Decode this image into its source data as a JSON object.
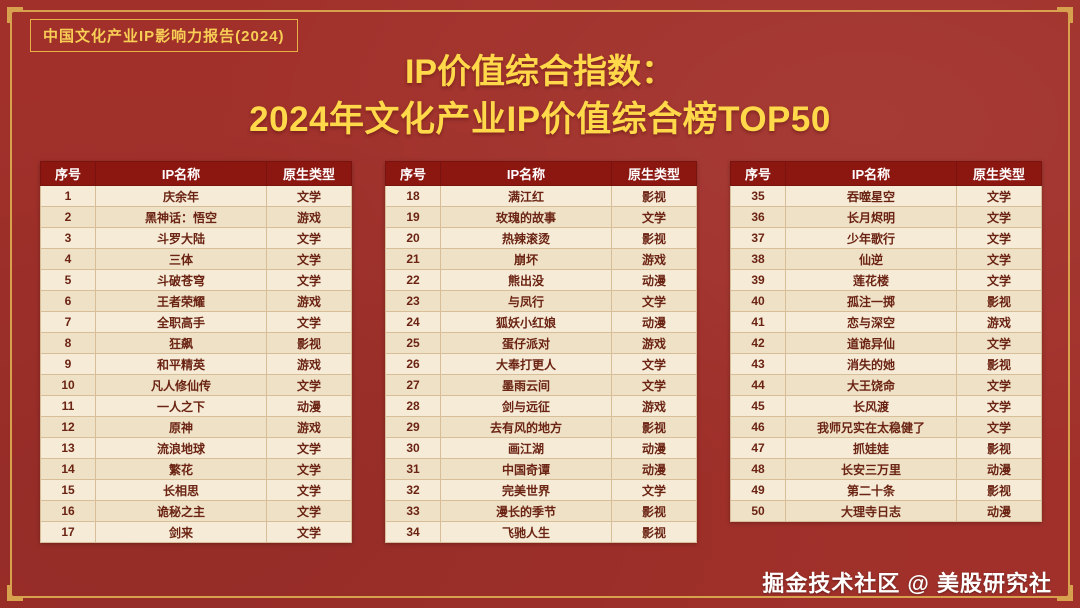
{
  "page": {
    "report_label": "中国文化产业IP影响力报告(2024)",
    "title_line1": "IP价值综合指数：",
    "title_line2": "2024年文化产业IP价值综合榜TOP50",
    "footer_credit": "掘金技术社区 @ 美股研究社"
  },
  "colors": {
    "background": "#A1302A",
    "frame_gold": "#D8A14E",
    "title_yellow": "#FFD94A",
    "table_header_bg": "#8C1610",
    "row_light": "#F6EBD6",
    "row_dark": "#EFE1C6",
    "cell_text": "#6B2414"
  },
  "table_headers": [
    "序号",
    "IP名称",
    "原生类型"
  ],
  "tables": [
    {
      "rows": [
        [
          1,
          "庆余年",
          "文学"
        ],
        [
          2,
          "黑神话：悟空",
          "游戏"
        ],
        [
          3,
          "斗罗大陆",
          "文学"
        ],
        [
          4,
          "三体",
          "文学"
        ],
        [
          5,
          "斗破苍穹",
          "文学"
        ],
        [
          6,
          "王者荣耀",
          "游戏"
        ],
        [
          7,
          "全职高手",
          "文学"
        ],
        [
          8,
          "狂飙",
          "影视"
        ],
        [
          9,
          "和平精英",
          "游戏"
        ],
        [
          10,
          "凡人修仙传",
          "文学"
        ],
        [
          11,
          "一人之下",
          "动漫"
        ],
        [
          12,
          "原神",
          "游戏"
        ],
        [
          13,
          "流浪地球",
          "文学"
        ],
        [
          14,
          "繁花",
          "文学"
        ],
        [
          15,
          "长相思",
          "文学"
        ],
        [
          16,
          "诡秘之主",
          "文学"
        ],
        [
          17,
          "剑来",
          "文学"
        ]
      ]
    },
    {
      "rows": [
        [
          18,
          "满江红",
          "影视"
        ],
        [
          19,
          "玫瑰的故事",
          "文学"
        ],
        [
          20,
          "热辣滚烫",
          "影视"
        ],
        [
          21,
          "崩坏",
          "游戏"
        ],
        [
          22,
          "熊出没",
          "动漫"
        ],
        [
          23,
          "与凤行",
          "文学"
        ],
        [
          24,
          "狐妖小红娘",
          "动漫"
        ],
        [
          25,
          "蛋仔派对",
          "游戏"
        ],
        [
          26,
          "大奉打更人",
          "文学"
        ],
        [
          27,
          "墨雨云间",
          "文学"
        ],
        [
          28,
          "剑与远征",
          "游戏"
        ],
        [
          29,
          "去有风的地方",
          "影视"
        ],
        [
          30,
          "画江湖",
          "动漫"
        ],
        [
          31,
          "中国奇谭",
          "动漫"
        ],
        [
          32,
          "完美世界",
          "文学"
        ],
        [
          33,
          "漫长的季节",
          "影视"
        ],
        [
          34,
          "飞驰人生",
          "影视"
        ]
      ]
    },
    {
      "rows": [
        [
          35,
          "吞噬星空",
          "文学"
        ],
        [
          36,
          "长月烬明",
          "文学"
        ],
        [
          37,
          "少年歌行",
          "文学"
        ],
        [
          38,
          "仙逆",
          "文学"
        ],
        [
          39,
          "莲花楼",
          "文学"
        ],
        [
          40,
          "孤注一掷",
          "影视"
        ],
        [
          41,
          "恋与深空",
          "游戏"
        ],
        [
          42,
          "道诡异仙",
          "文学"
        ],
        [
          43,
          "消失的她",
          "影视"
        ],
        [
          44,
          "大王饶命",
          "文学"
        ],
        [
          45,
          "长风渡",
          "文学"
        ],
        [
          46,
          "我师兄实在太稳健了",
          "文学"
        ],
        [
          47,
          "抓娃娃",
          "影视"
        ],
        [
          48,
          "长安三万里",
          "动漫"
        ],
        [
          49,
          "第二十条",
          "影视"
        ],
        [
          50,
          "大理寺日志",
          "动漫"
        ]
      ]
    }
  ]
}
